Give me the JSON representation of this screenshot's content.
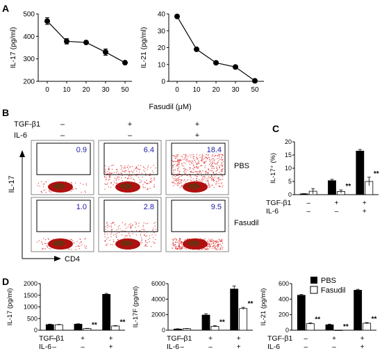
{
  "panel_labels": {
    "A": "A",
    "B": "B",
    "C": "C",
    "D": "D"
  },
  "shared": {
    "fasudil_xlabel": "Fasudil (μM)",
    "tgf_label": "TGF-β1",
    "il6_label": "IL-6",
    "tgf_signs": [
      "–",
      "+",
      "+"
    ],
    "il6_signs": [
      "–",
      "–",
      "+"
    ],
    "sig_marker": "**"
  },
  "flow": {
    "ylabel": "IL-17",
    "xlabel": "CD4",
    "conditions": [
      {
        "tgf": "–",
        "il6": "–"
      },
      {
        "tgf": "+",
        "il6": "–"
      },
      {
        "tgf": "+",
        "il6": "+"
      }
    ],
    "rows": [
      {
        "label": "PBS",
        "values": [
          "0.9",
          "6.4",
          "18.4"
        ]
      },
      {
        "label": "Fasudil",
        "values": [
          "1.0",
          "2.8",
          "9.5"
        ]
      }
    ],
    "colors": {
      "dots": "#e02020",
      "value_text": "#1a1aa8",
      "core": "#b01010"
    }
  },
  "legend": {
    "pbs": "PBS",
    "fasudil": "Fasudil"
  },
  "chart_data": [
    {
      "id": "A1",
      "type": "line",
      "x": [
        0,
        10,
        20,
        30,
        50
      ],
      "series": [
        {
          "values": [
            468,
            378,
            373,
            330,
            283
          ],
          "errors": [
            15,
            12,
            6,
            14,
            4
          ]
        }
      ],
      "xlabel": "",
      "ylabel": "IL-17 (pg/ml)",
      "ylim": [
        200,
        500
      ],
      "yticks": [
        200,
        300,
        400,
        500
      ],
      "xticks": [
        0,
        10,
        20,
        30,
        50
      ]
    },
    {
      "id": "A2",
      "type": "line",
      "x": [
        0,
        10,
        20,
        30,
        50
      ],
      "series": [
        {
          "values": [
            38.5,
            19,
            11,
            8.5,
            0.3
          ],
          "errors": [
            0.8,
            0.8,
            0.6,
            0.5,
            0.2
          ]
        }
      ],
      "xlabel": "",
      "ylabel": "IL-21 (pg/ml)",
      "ylim": [
        0,
        40
      ],
      "yticks": [
        0,
        10,
        20,
        30,
        40
      ],
      "xticks": [
        0,
        10,
        20,
        30,
        50
      ]
    },
    {
      "id": "C",
      "type": "bar",
      "categories": [
        "1",
        "2",
        "3"
      ],
      "series": [
        {
          "name": "PBS",
          "values": [
            0.3,
            5.3,
            16.5
          ],
          "errors": [
            0.1,
            0.5,
            0.6
          ]
        },
        {
          "name": "Fasudil",
          "values": [
            1.3,
            1.2,
            5.0
          ],
          "errors": [
            1.0,
            0.6,
            1.6
          ]
        }
      ],
      "ylabel": "IL-17⁺ (%)",
      "ylim": [
        0,
        20
      ],
      "yticks": [
        0,
        5,
        10,
        15,
        20
      ],
      "significance": [
        null,
        "**",
        "**"
      ]
    },
    {
      "id": "D1",
      "type": "bar",
      "categories": [
        "1",
        "2",
        "3"
      ],
      "series": [
        {
          "name": "PBS",
          "values": [
            240,
            260,
            1540
          ],
          "errors": [
            20,
            15,
            40
          ]
        },
        {
          "name": "Fasudil",
          "values": [
            235,
            70,
            180
          ],
          "errors": [
            15,
            10,
            20
          ]
        }
      ],
      "ylabel": "IL-17 (pg/ml)",
      "ylim": [
        0,
        2000
      ],
      "yticks": [
        0,
        500,
        1000,
        1500,
        2000
      ],
      "significance": [
        null,
        "**",
        "**"
      ]
    },
    {
      "id": "D2",
      "type": "bar",
      "categories": [
        "1",
        "2",
        "3"
      ],
      "series": [
        {
          "name": "PBS",
          "values": [
            150,
            1950,
            5300
          ],
          "errors": [
            30,
            150,
            400
          ]
        },
        {
          "name": "Fasudil",
          "values": [
            200,
            500,
            2800
          ],
          "errors": [
            30,
            80,
            150
          ]
        }
      ],
      "ylabel": "IL-17F (pg/ml)",
      "ylim": [
        0,
        6000
      ],
      "yticks": [
        0,
        2000,
        4000,
        6000
      ],
      "significance": [
        null,
        "**",
        "**"
      ]
    },
    {
      "id": "D3",
      "type": "bar",
      "categories": [
        "1",
        "2",
        "3"
      ],
      "series": [
        {
          "name": "PBS",
          "values": [
            450,
            70,
            515
          ],
          "errors": [
            10,
            8,
            12
          ]
        },
        {
          "name": "Fasudil",
          "values": [
            85,
            0,
            90
          ],
          "errors": [
            8,
            0,
            8
          ]
        }
      ],
      "ylabel": "IL-21 (pg/ml)",
      "ylim": [
        0,
        600
      ],
      "yticks": [
        0,
        200,
        400,
        600
      ],
      "significance": [
        "**",
        "**",
        "**"
      ]
    }
  ]
}
